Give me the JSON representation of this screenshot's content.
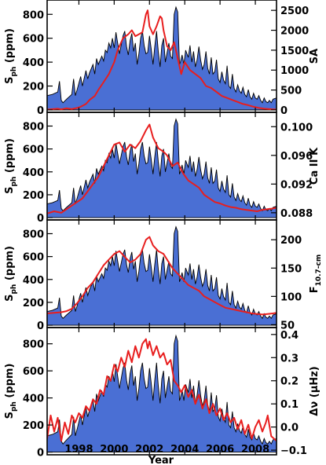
{
  "chart_data": {
    "type": "area",
    "xlabel": "Year",
    "xlim": [
      1996.2,
      2009.2
    ],
    "x_ticks": [
      {
        "value": 1998,
        "label": "1998"
      },
      {
        "value": 2000,
        "label": "2000"
      },
      {
        "value": 2002,
        "label": "2002"
      },
      {
        "value": 2004,
        "label": "2004"
      },
      {
        "value": 2006,
        "label": "2006"
      },
      {
        "value": 2008,
        "label": "2008"
      }
    ],
    "shared_series": {
      "name": "Sph",
      "color": "#4a6fd4",
      "x": [
        1996.2,
        1996.5,
        1996.8,
        1996.9,
        1997.0,
        1997.1,
        1997.3,
        1997.6,
        1997.7,
        1997.8,
        1997.9,
        1998.1,
        1998.2,
        1998.4,
        1998.5,
        1998.6,
        1998.8,
        1998.9,
        1999.0,
        1999.1,
        1999.3,
        1999.4,
        1999.5,
        1999.6,
        1999.7,
        1999.8,
        1999.9,
        2000.0,
        2000.1,
        2000.2,
        2000.3,
        2000.5,
        2000.6,
        2000.7,
        2000.8,
        2000.9,
        2001.0,
        2001.1,
        2001.2,
        2001.3,
        2001.4,
        2001.5,
        2001.6,
        2001.7,
        2001.8,
        2001.9,
        2002.0,
        2002.1,
        2002.2,
        2002.3,
        2002.4,
        2002.5,
        2002.6,
        2002.7,
        2002.8,
        2002.9,
        2003.0,
        2003.1,
        2003.2,
        2003.3,
        2003.4,
        2003.5,
        2003.6,
        2003.7,
        2003.75,
        2003.85,
        2003.95,
        2004.05,
        2004.2,
        2004.3,
        2004.4,
        2004.5,
        2004.6,
        2004.7,
        2004.8,
        2004.9,
        2005.0,
        2005.1,
        2005.2,
        2005.3,
        2005.4,
        2005.5,
        2005.6,
        2005.7,
        2005.8,
        2005.9,
        2006.0,
        2006.1,
        2006.2,
        2006.3,
        2006.4,
        2006.5,
        2006.6,
        2006.7,
        2006.8,
        2006.9,
        2007.0,
        2007.1,
        2007.2,
        2007.3,
        2007.4,
        2007.5,
        2007.6,
        2007.7,
        2007.8,
        2007.9,
        2008.0,
        2008.1,
        2008.2,
        2008.3,
        2008.4,
        2008.5,
        2008.6,
        2008.7,
        2008.8,
        2008.9,
        2009.0,
        2009.2
      ],
      "values": [
        120,
        130,
        150,
        240,
        80,
        60,
        90,
        130,
        260,
        120,
        170,
        280,
        200,
        330,
        260,
        310,
        380,
        300,
        430,
        380,
        450,
        410,
        500,
        480,
        560,
        520,
        600,
        520,
        650,
        560,
        470,
        620,
        660,
        530,
        460,
        580,
        640,
        490,
        560,
        380,
        470,
        600,
        660,
        540,
        470,
        480,
        620,
        510,
        380,
        530,
        660,
        490,
        360,
        540,
        600,
        400,
        480,
        560,
        450,
        430,
        800,
        860,
        820,
        380,
        400,
        460,
        380,
        500,
        440,
        540,
        400,
        490,
        360,
        420,
        530,
        420,
        340,
        380,
        490,
        350,
        300,
        440,
        300,
        320,
        420,
        260,
        230,
        320,
        250,
        220,
        370,
        200,
        180,
        300,
        180,
        150,
        210,
        160,
        140,
        190,
        130,
        110,
        170,
        110,
        90,
        140,
        100,
        90,
        120,
        80,
        60,
        100,
        70,
        60,
        80,
        60,
        90,
        100
      ]
    },
    "panels": [
      {
        "name": "SA",
        "ylabel_left": "Sph (ppm)",
        "ylabel_right": "SA",
        "ylim_left": [
          -20,
          920
        ],
        "ylim_right": [
          -60,
          2760
        ],
        "left_ticks": [
          0,
          200,
          400,
          600,
          800
        ],
        "right_ticks": [
          {
            "value": 0,
            "label": "0"
          },
          {
            "value": 500,
            "label": "500"
          },
          {
            "value": 1000,
            "label": "1000"
          },
          {
            "value": 1500,
            "label": "1500"
          },
          {
            "value": 2000,
            "label": "2000"
          },
          {
            "value": 2500,
            "label": "2500"
          }
        ],
        "overlay": {
          "name": "SA",
          "color": "#e81e1e",
          "x": [
            1996.2,
            1996.8,
            1997.0,
            1997.3,
            1997.6,
            1997.9,
            1998.1,
            1998.4,
            1998.6,
            1998.9,
            1999.1,
            1999.4,
            1999.7,
            2000.0,
            2000.2,
            2000.5,
            2000.8,
            2001.0,
            2001.2,
            2001.4,
            2001.6,
            2001.8,
            2001.9,
            2002.0,
            2002.2,
            2002.4,
            2002.6,
            2002.7,
            2002.8,
            2003.0,
            2003.2,
            2003.4,
            2003.6,
            2003.8,
            2004.0,
            2004.3,
            2004.6,
            2004.9,
            2005.2,
            2005.5,
            2005.8,
            2006.1,
            2006.4,
            2006.7,
            2007.0,
            2007.3,
            2007.6,
            2007.9,
            2008.2,
            2008.5,
            2008.8,
            2009.2
          ],
          "values": [
            10,
            30,
            15,
            40,
            20,
            50,
            80,
            150,
            250,
            350,
            500,
            700,
            900,
            1200,
            1500,
            1800,
            1900,
            2000,
            1850,
            1900,
            1950,
            2400,
            2500,
            2100,
            1900,
            2100,
            2350,
            2300,
            2000,
            1600,
            1500,
            1700,
            1300,
            900,
            1200,
            1000,
            900,
            800,
            600,
            550,
            450,
            350,
            300,
            250,
            200,
            150,
            120,
            80,
            50,
            30,
            20,
            10
          ]
        }
      },
      {
        "name": "Ca II K",
        "ylabel_left": "Sph (ppm)",
        "ylabel_right": "Ca II K",
        "ylim_left": [
          -20,
          920
        ],
        "ylim_right": [
          0.087,
          0.102
        ],
        "left_ticks": [
          0,
          200,
          400,
          600,
          800
        ],
        "right_ticks": [
          {
            "value": 0.088,
            "label": "0.088"
          },
          {
            "value": 0.092,
            "label": "0.092"
          },
          {
            "value": 0.096,
            "label": "0.096"
          },
          {
            "value": 0.1,
            "label": "0.100"
          }
        ],
        "overlay": {
          "name": "Ca II K",
          "color": "#e81e1e",
          "x": [
            1996.2,
            1996.6,
            1997.0,
            1997.3,
            1997.6,
            1997.9,
            1998.2,
            1998.5,
            1998.8,
            1999.1,
            1999.4,
            1999.7,
            2000.0,
            2000.3,
            2000.6,
            2000.9,
            2001.2,
            2001.5,
            2001.8,
            2002.0,
            2002.2,
            2002.5,
            2002.8,
            2003.0,
            2003.3,
            2003.6,
            2003.9,
            2004.2,
            2004.5,
            2004.8,
            2005.1,
            2005.4,
            2005.7,
            2006.0,
            2006.3,
            2006.6,
            2006.9,
            2007.2,
            2007.5,
            2007.8,
            2008.1,
            2008.4,
            2008.7,
            2009.0,
            2009.2
          ],
          "values": [
            0.0879,
            0.0882,
            0.088,
            0.0885,
            0.089,
            0.0895,
            0.09,
            0.091,
            0.092,
            0.093,
            0.0945,
            0.096,
            0.0975,
            0.0978,
            0.0965,
            0.0975,
            0.097,
            0.098,
            0.0995,
            0.1003,
            0.0985,
            0.097,
            0.0965,
            0.096,
            0.0945,
            0.095,
            0.0935,
            0.0925,
            0.092,
            0.0915,
            0.0905,
            0.09,
            0.0895,
            0.0893,
            0.089,
            0.0888,
            0.0887,
            0.0885,
            0.0884,
            0.0883,
            0.0882,
            0.0884,
            0.0885,
            0.0886,
            0.0887
          ]
        }
      },
      {
        "name": "F10.7-cm",
        "ylabel_left": "Sph (ppm)",
        "ylabel_right_main": "F",
        "ylabel_right_sub": "10.7-cm",
        "ylim_left": [
          -20,
          920
        ],
        "ylim_right": [
          45,
          235
        ],
        "left_ticks": [
          0,
          200,
          400,
          600,
          800
        ],
        "right_ticks": [
          {
            "value": 50,
            "label": "50"
          },
          {
            "value": 100,
            "label": "100"
          },
          {
            "value": 150,
            "label": "150"
          },
          {
            "value": 200,
            "label": "200"
          }
        ],
        "overlay": {
          "name": "F10.7-cm",
          "color": "#e81e1e",
          "x": [
            1996.2,
            1996.6,
            1997.0,
            1997.3,
            1997.6,
            1997.9,
            1998.2,
            1998.5,
            1998.8,
            1999.1,
            1999.4,
            1999.7,
            2000.0,
            2000.3,
            2000.6,
            2000.9,
            2001.2,
            2001.5,
            2001.8,
            2002.0,
            2002.2,
            2002.5,
            2002.8,
            2003.0,
            2003.3,
            2003.6,
            2003.9,
            2004.2,
            2004.5,
            2004.8,
            2005.1,
            2005.4,
            2005.7,
            2006.0,
            2006.3,
            2006.6,
            2006.9,
            2007.2,
            2007.5,
            2007.8,
            2008.1,
            2008.4,
            2008.7,
            2009.0,
            2009.2
          ],
          "values": [
            70,
            71,
            72,
            74,
            78,
            88,
            100,
            115,
            125,
            140,
            155,
            165,
            175,
            180,
            170,
            160,
            165,
            175,
            200,
            205,
            190,
            180,
            175,
            165,
            150,
            140,
            130,
            120,
            115,
            110,
            100,
            95,
            90,
            85,
            80,
            78,
            76,
            74,
            72,
            70,
            69,
            68,
            69,
            70,
            71
          ]
        }
      },
      {
        "name": "Δν (μHz)",
        "ylabel_left": "Sph (ppm)",
        "ylabel_right": "Δν (μHz)",
        "ylim_left": [
          -20,
          920
        ],
        "ylim_right": [
          -0.12,
          0.43
        ],
        "left_ticks": [
          0,
          200,
          400,
          600,
          800
        ],
        "right_ticks": [
          {
            "value": -0.1,
            "label": "−0.1"
          },
          {
            "value": 0.0,
            "label": "0.0"
          },
          {
            "value": 0.1,
            "label": "0.1"
          },
          {
            "value": 0.2,
            "label": "0.2"
          },
          {
            "value": 0.3,
            "label": "0.3"
          },
          {
            "value": 0.4,
            "label": "0.4"
          }
        ],
        "overlay": {
          "name": "Δν",
          "color": "#e81e1e",
          "x": [
            1996.2,
            1996.4,
            1996.6,
            1996.8,
            1997.0,
            1997.2,
            1997.4,
            1997.6,
            1997.8,
            1998.0,
            1998.2,
            1998.4,
            1998.6,
            1998.8,
            1999.0,
            1999.2,
            1999.4,
            1999.6,
            1999.8,
            2000.0,
            2000.2,
            2000.4,
            2000.6,
            2000.8,
            2001.0,
            2001.2,
            2001.4,
            2001.6,
            2001.8,
            2001.9,
            2002.0,
            2002.2,
            2002.4,
            2002.6,
            2002.8,
            2003.0,
            2003.2,
            2003.4,
            2003.6,
            2003.8,
            2004.0,
            2004.2,
            2004.4,
            2004.6,
            2004.8,
            2005.0,
            2005.2,
            2005.4,
            2005.6,
            2005.8,
            2006.0,
            2006.2,
            2006.4,
            2006.6,
            2006.8,
            2007.0,
            2007.2,
            2007.4,
            2007.6,
            2007.8,
            2008.0,
            2008.2,
            2008.4,
            2008.6,
            2008.7,
            2008.9,
            2009.2
          ],
          "values": [
            -0.05,
            0.05,
            -0.02,
            0.04,
            -0.06,
            0.02,
            -0.03,
            0.05,
            0.02,
            0.06,
            0.04,
            0.09,
            0.07,
            0.12,
            0.1,
            0.16,
            0.14,
            0.22,
            0.2,
            0.27,
            0.24,
            0.3,
            0.26,
            0.33,
            0.28,
            0.35,
            0.3,
            0.36,
            0.38,
            0.34,
            0.37,
            0.31,
            0.35,
            0.3,
            0.32,
            0.27,
            0.29,
            0.2,
            0.18,
            0.15,
            0.18,
            0.13,
            0.16,
            0.1,
            0.14,
            0.08,
            0.12,
            0.06,
            0.1,
            0.05,
            0.08,
            0.03,
            0.06,
            0.02,
            0.04,
            -0.01,
            0.03,
            -0.03,
            0.01,
            -0.05,
            0.0,
            0.03,
            -0.02,
            0.02,
            0.05,
            -0.04,
            -0.06
          ]
        }
      }
    ]
  }
}
